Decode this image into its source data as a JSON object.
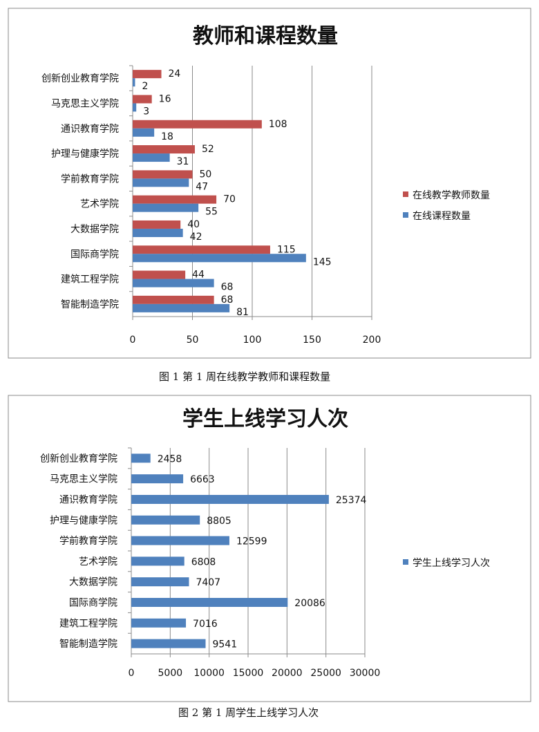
{
  "chart_data": [
    {
      "type": "bar",
      "orientation": "horizontal",
      "title": "教师和课程数量",
      "caption": "图 1 第 1 周在线教学教师和课程数量",
      "categories": [
        "创新创业教育学院",
        "马克思主义学院",
        "通识教育学院",
        "护理与健康学院",
        "学前教育学院",
        "艺术学院",
        "大数据学院",
        "国际商学院",
        "建筑工程学院",
        "智能制造学院"
      ],
      "series": [
        {
          "name": "在线教学教师数量",
          "color": "#c0504d",
          "values": [
            24,
            16,
            108,
            52,
            50,
            70,
            40,
            115,
            44,
            68
          ]
        },
        {
          "name": "在线课程数量",
          "color": "#4f81bd",
          "values": [
            2,
            3,
            18,
            31,
            47,
            55,
            42,
            145,
            68,
            81
          ]
        }
      ],
      "xlim": [
        0,
        200
      ],
      "xticks": [
        "0",
        "50",
        "100",
        "150",
        "200"
      ],
      "grid": true,
      "legend": "right"
    },
    {
      "type": "bar",
      "orientation": "horizontal",
      "title": "学生上线学习人次",
      "caption": "图 2 第 1 周学生上线学习人次",
      "categories": [
        "创新创业教育学院",
        "马克思主义学院",
        "通识教育学院",
        "护理与健康学院",
        "学前教育学院",
        "艺术学院",
        "大数据学院",
        "国际商学院",
        "建筑工程学院",
        "智能制造学院"
      ],
      "series": [
        {
          "name": "学生上线学习人次",
          "color": "#4f81bd",
          "values": [
            2458,
            6663,
            25374,
            8805,
            12599,
            6808,
            7407,
            20086,
            7016,
            9541
          ]
        }
      ],
      "xlim": [
        0,
        30000
      ],
      "xticks": [
        "0",
        "5000",
        "10000",
        "15000",
        "20000",
        "25000",
        "30000"
      ],
      "grid": true,
      "legend": "right"
    }
  ]
}
